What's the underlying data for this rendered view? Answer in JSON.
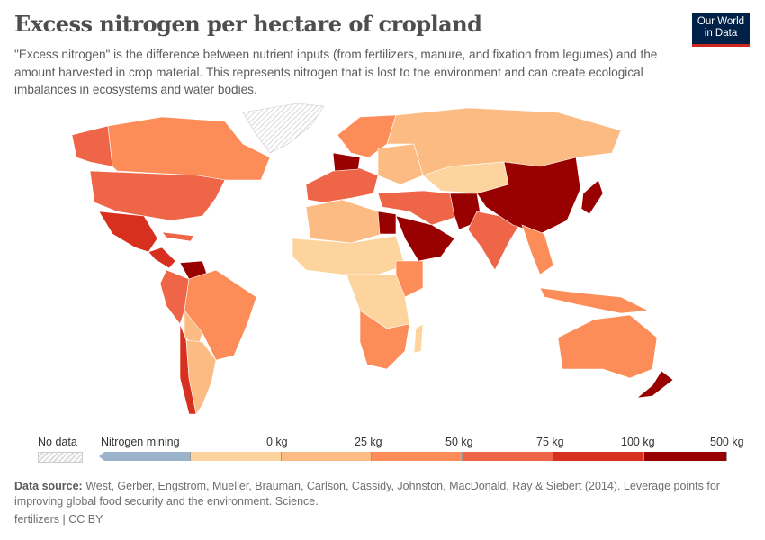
{
  "title": "Excess nitrogen per hectare of cropland",
  "subtitle": "\"Excess nitrogen\" is the difference between nutrient inputs (from fertilizers, manure, and fixation from legumes) and the amount harvested in crop material. This represents nitrogen that is lost to the environment and can create ecological imbalances in ecosystems and water bodies.",
  "logo": {
    "line1": "Our World",
    "line2": "in Data"
  },
  "legend": {
    "no_data": "No data",
    "mining": "Nitrogen mining",
    "ticks": [
      "0 kg",
      "25 kg",
      "50 kg",
      "75 kg",
      "100 kg",
      "500 kg"
    ],
    "colors": [
      "#9cb4cb",
      "#fdd49e",
      "#fdbb84",
      "#fc8d59",
      "#ef6548",
      "#d7301f",
      "#990000"
    ]
  },
  "footer": {
    "source_label": "Data source:",
    "source_text": " West, Gerber, Engstrom, Mueller, Brauman, Carlson, Cassidy, Johnston, MacDonald, Ray & Siebert (2014). Leverage points for improving global food security and the environment. Science.",
    "license": "fertilizers | CC BY"
  }
}
